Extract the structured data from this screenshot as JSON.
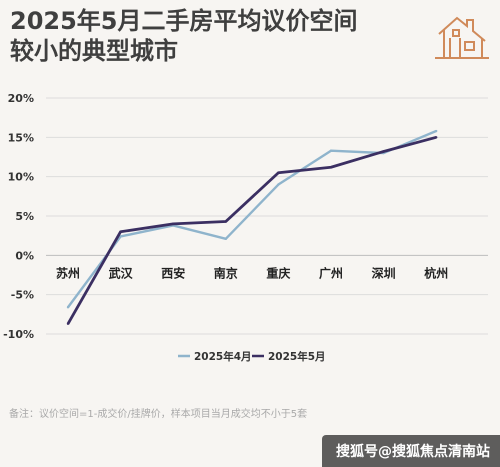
{
  "header": {
    "title_line1": "2025年5月二手房平均议价空间",
    "title_line2": "较小的典型城市",
    "logo_icon": "house-icon"
  },
  "chart_data": {
    "type": "line",
    "categories": [
      "苏州",
      "武汉",
      "西安",
      "南京",
      "重庆",
      "广州",
      "深圳",
      "杭州"
    ],
    "ylim": [
      -0.1,
      0.2
    ],
    "yticks": [
      0.2,
      0.15,
      0.1,
      0.05,
      0.0,
      -0.05,
      -0.1
    ],
    "ytick_labels": [
      "20%",
      "15%",
      "10%",
      "5%",
      "0%",
      "-5%",
      "-10%"
    ],
    "grid": true,
    "legend_position": "bottom",
    "series": [
      {
        "name": "2025年4月",
        "color": "#8fb4cc",
        "values": [
          -0.066,
          0.024,
          0.038,
          0.021,
          0.09,
          0.133,
          0.13,
          0.158
        ]
      },
      {
        "name": "2025年5月",
        "color": "#3b2f62",
        "values": [
          -0.087,
          0.03,
          0.04,
          0.043,
          0.105,
          0.112,
          0.132,
          0.15
        ]
      }
    ]
  },
  "footer": {
    "note": "备注：议价空间=1-成交价/挂牌价，样本项目当月成交均不小于5套",
    "watermark": "搜狐号@搜狐焦点清南站"
  }
}
